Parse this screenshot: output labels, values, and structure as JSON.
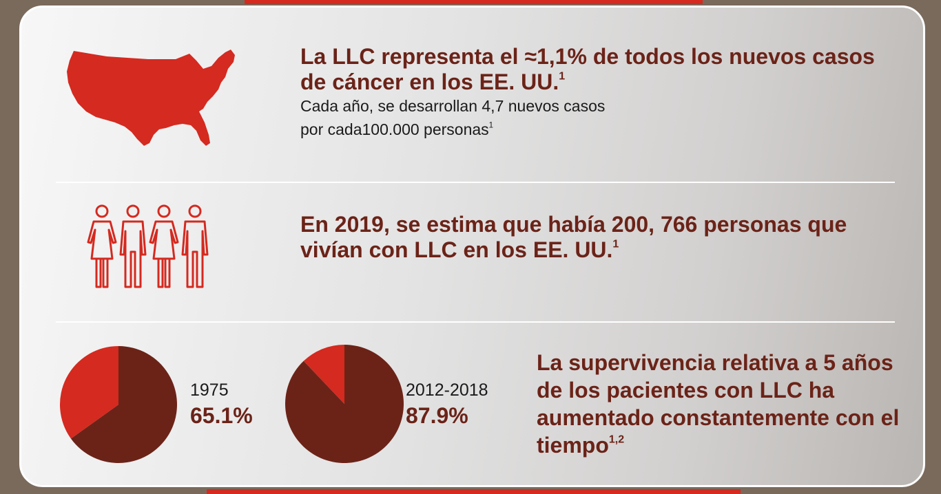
{
  "section_us": {
    "heading": "La LLC representa el ≈1,1% de todos los nuevos casos de cáncer en los EE. UU.",
    "heading_sup": "1",
    "body_line1": "Cada año, se desarrollan 4,7 nuevos casos",
    "body_line2": "por cada100.000 personas",
    "body_sup": "1",
    "icon": "us-map-icon"
  },
  "section_people": {
    "heading": "En 2019, se estima que había 200, 766 personas que vivían con LLC en los EE. UU.",
    "heading_sup": "1",
    "icon": "people-group-icon"
  },
  "section_survival": {
    "heading": "La supervivencia relativa a 5 años de los pacientes con LLC ha aumentado constantemente con el tiempo",
    "heading_sup": "1,2"
  },
  "colors": {
    "dark": "#6b2318",
    "red": "#d42a20"
  },
  "chart_data": [
    {
      "type": "pie",
      "label": "1975",
      "value_label": "65.1%",
      "slices": [
        {
          "value": 65.1,
          "color": "#6b2318"
        },
        {
          "value": 34.9,
          "color": "#d42a20"
        }
      ]
    },
    {
      "type": "pie",
      "label": "2012-2018",
      "value_label": "87.9%",
      "slices": [
        {
          "value": 87.9,
          "color": "#6b2318"
        },
        {
          "value": 12.1,
          "color": "#d42a20"
        }
      ]
    }
  ]
}
